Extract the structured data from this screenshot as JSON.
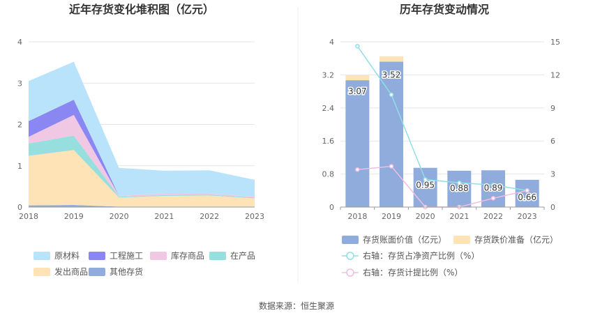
{
  "source_text": "数据来源：恒生聚源",
  "colors": {
    "原材料": "#b9e3fb",
    "工程施工": "#8a87f2",
    "库存商品": "#f0c8e4",
    "在产品": "#97dede",
    "发出商品": "#fde3b6",
    "其他存货": "#8facdc",
    "bar": "#8facdc",
    "provision": "#fde3b6",
    "ratio_line": "#8fdfe6",
    "provision_line": "#f2bde0",
    "grid": "#e6e6e6",
    "axis": "#999999"
  },
  "chart_data": [
    {
      "type": "area",
      "title": "近年存货变化堆积图（亿元）",
      "categories": [
        "2018",
        "2019",
        "2020",
        "2021",
        "2022",
        "2023"
      ],
      "ylim": [
        0,
        4
      ],
      "yticks": [
        "0",
        "1",
        "2",
        "3",
        "4"
      ],
      "stacked": true,
      "series": [
        {
          "name": "其他存货",
          "values": [
            0.04,
            0.05,
            0.01,
            0.01,
            0.01,
            0.01
          ]
        },
        {
          "name": "发出商品",
          "values": [
            1.2,
            1.33,
            0.22,
            0.26,
            0.27,
            0.2
          ]
        },
        {
          "name": "在产品",
          "values": [
            0.3,
            0.35,
            0.02,
            0.02,
            0.02,
            0.02
          ]
        },
        {
          "name": "库存商品",
          "values": [
            0.16,
            0.5,
            0.02,
            0.04,
            0.03,
            0.02
          ]
        },
        {
          "name": "工程施工",
          "values": [
            0.38,
            0.37,
            0.0,
            0.0,
            0.0,
            0.0
          ]
        },
        {
          "name": "原材料",
          "values": [
            0.97,
            0.92,
            0.68,
            0.55,
            0.56,
            0.41
          ]
        }
      ],
      "legend": [
        "原材料",
        "工程施工",
        "库存商品",
        "在产品",
        "发出商品",
        "其他存货"
      ],
      "legend_position": "bottom",
      "grid": true
    },
    {
      "type": "bar",
      "title": "历年存货变动情况",
      "categories": [
        "2018",
        "2019",
        "2020",
        "2021",
        "2022",
        "2023"
      ],
      "ylim": [
        0,
        4
      ],
      "yticks": [
        "0",
        "0.8",
        "1.6",
        "2.4",
        "3.2",
        "4"
      ],
      "y2lim": [
        0,
        15
      ],
      "y2ticks": [
        "0",
        "3",
        "6",
        "9",
        "12",
        "15"
      ],
      "series": [
        {
          "name": "存货账面价值（亿元）",
          "axis": "left",
          "stack": "inv",
          "values": [
            3.07,
            3.52,
            0.95,
            0.88,
            0.89,
            0.66
          ]
        },
        {
          "name": "存货跌价准备（亿元）",
          "axis": "left",
          "stack": "inv",
          "values": [
            0.12,
            0.13,
            0.0,
            0.0,
            0.0,
            0.0
          ]
        },
        {
          "name": "右轴：存货占净资产比例（%）",
          "axis": "right",
          "type": "line",
          "values": [
            14.6,
            10.2,
            2.5,
            2.2,
            2.0,
            1.5
          ]
        },
        {
          "name": "右轴：存货计提比例（%）",
          "axis": "right",
          "type": "line",
          "values": [
            3.4,
            3.7,
            0.0,
            0.0,
            0.8,
            1.5
          ]
        }
      ],
      "data_labels": [
        "3.07",
        "3.52",
        "0.95",
        "0.88",
        "0.89",
        "0.66"
      ],
      "legend_position": "bottom",
      "grid": true
    }
  ]
}
